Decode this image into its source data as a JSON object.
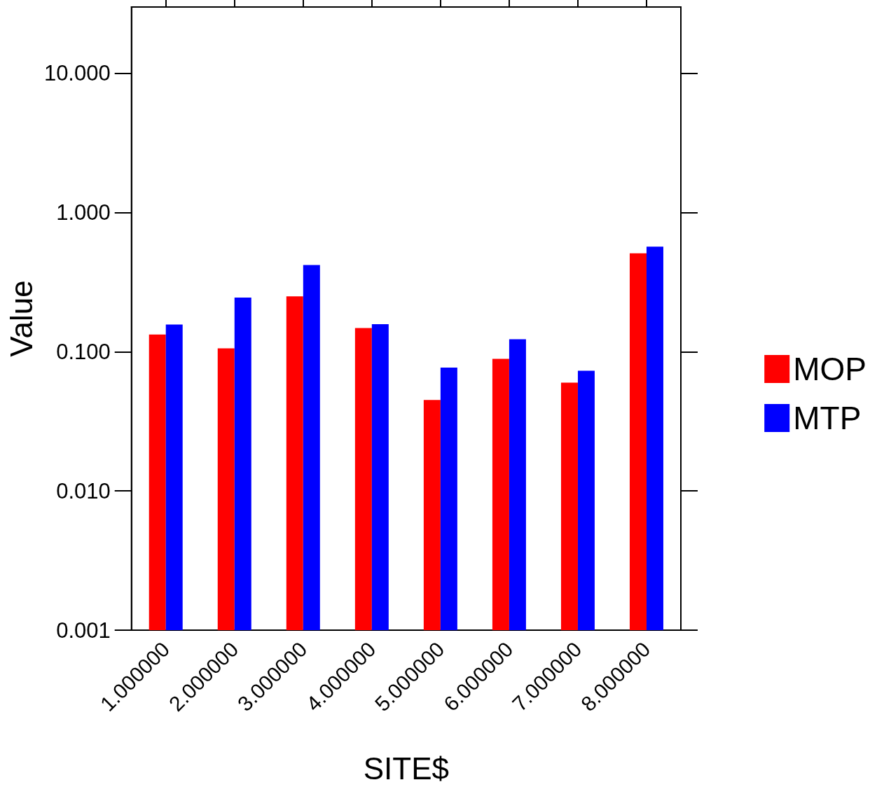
{
  "chart_data": {
    "type": "bar",
    "categories": [
      "1.000000",
      "2.000000",
      "3.000000",
      "4.000000",
      "5.000000",
      "6.000000",
      "7.000000",
      "8.000000"
    ],
    "series": [
      {
        "name": "MOP",
        "color": "#ff0000",
        "values": [
          0.133,
          0.106,
          0.25,
          0.148,
          0.045,
          0.089,
          0.06,
          0.51
        ]
      },
      {
        "name": "MTP",
        "color": "#0000ff",
        "values": [
          0.157,
          0.245,
          0.42,
          0.158,
          0.077,
          0.123,
          0.073,
          0.57
        ]
      }
    ],
    "xlabel": "SITE$",
    "ylabel": "Value",
    "log": "y",
    "ylim": [
      0.001,
      30
    ],
    "yticks": [
      {
        "value": 0.001,
        "label": "0.001"
      },
      {
        "value": 0.01,
        "label": "0.010"
      },
      {
        "value": 0.1,
        "label": "0.100"
      },
      {
        "value": 1,
        "label": "1.000"
      },
      {
        "value": 10,
        "label": "10.000"
      }
    ],
    "grid": false,
    "legend": "right"
  }
}
